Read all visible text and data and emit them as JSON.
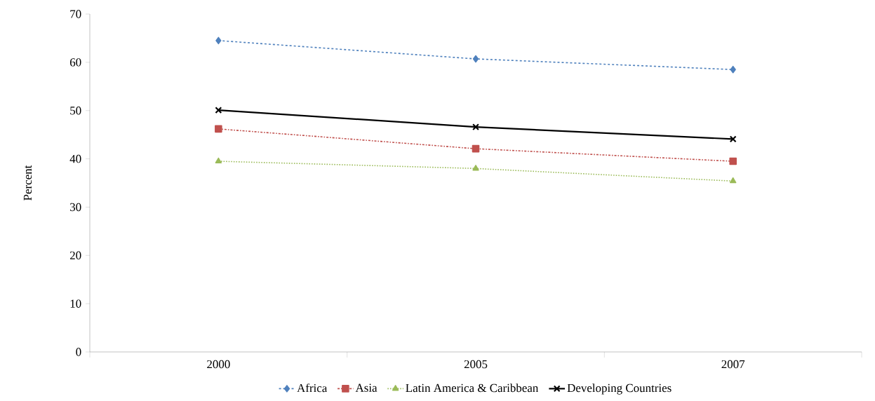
{
  "chart_data": {
    "type": "line",
    "ylabel": "Percent",
    "categories": [
      "2000",
      "2005",
      "2007"
    ],
    "series": [
      {
        "name": "Africa",
        "color": "#4f81bd",
        "values": [
          64.5,
          60.7,
          58.5
        ],
        "marker": "diamond",
        "line_style": "dashed"
      },
      {
        "name": "Asia",
        "color": "#c0504d",
        "values": [
          46.2,
          42.1,
          39.5
        ],
        "marker": "square",
        "line_style": "dashdot"
      },
      {
        "name": "Latin America & Caribbean",
        "color": "#9bbb59",
        "values": [
          39.5,
          38.0,
          35.4
        ],
        "marker": "triangle",
        "line_style": "dotted"
      },
      {
        "name": "Developing Countries",
        "color": "#000000",
        "values": [
          50.1,
          46.6,
          44.1
        ],
        "marker": "cross",
        "line_style": "solid"
      }
    ],
    "ylim": [
      0,
      70
    ],
    "yticks": [
      0,
      10,
      20,
      30,
      40,
      50,
      60,
      70
    ],
    "grid": false,
    "legend": "bottom"
  }
}
